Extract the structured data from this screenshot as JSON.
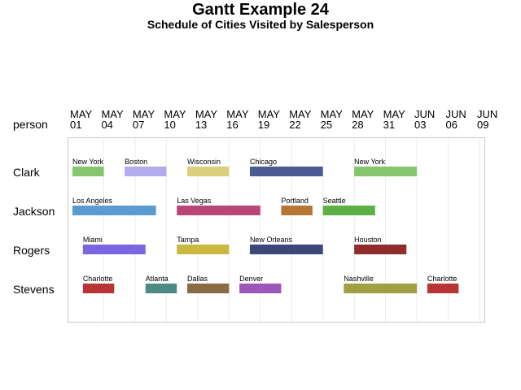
{
  "chart_data": {
    "type": "gantt",
    "title": "Gantt Example 24",
    "subtitle": "Schedule of Cities Visited by Salesperson",
    "row_header": "person",
    "x_start": "May 1",
    "x_end": "Jun 10",
    "ticks": [
      {
        "month": "MAY",
        "day": "01",
        "at": "May 1"
      },
      {
        "month": "MAY",
        "day": "04",
        "at": "May 4"
      },
      {
        "month": "MAY",
        "day": "07",
        "at": "May 7"
      },
      {
        "month": "MAY",
        "day": "10",
        "at": "May 10"
      },
      {
        "month": "MAY",
        "day": "13",
        "at": "May 13"
      },
      {
        "month": "MAY",
        "day": "16",
        "at": "May 16"
      },
      {
        "month": "MAY",
        "day": "19",
        "at": "May 19"
      },
      {
        "month": "MAY",
        "day": "22",
        "at": "May 22"
      },
      {
        "month": "MAY",
        "day": "25",
        "at": "May 25"
      },
      {
        "month": "MAY",
        "day": "28",
        "at": "May 28"
      },
      {
        "month": "MAY",
        "day": "31",
        "at": "May 31"
      },
      {
        "month": "JUN",
        "day": "03",
        "at": "Jun 3"
      },
      {
        "month": "JUN",
        "day": "06",
        "at": "Jun 6"
      },
      {
        "month": "JUN",
        "day": "09",
        "at": "Jun 9"
      }
    ],
    "persons": [
      {
        "name": "Clark",
        "tasks": [
          {
            "city": "New York",
            "start": "May 1",
            "end": "May 4",
            "color": "#84c56e"
          },
          {
            "city": "Boston",
            "start": "May 6",
            "end": "May 10",
            "color": "#b4aaee"
          },
          {
            "city": "Wisconsin",
            "start": "May 12",
            "end": "May 16",
            "color": "#dccf7c"
          },
          {
            "city": "Chicago",
            "start": "May 18",
            "end": "May 25",
            "color": "#4b5b96"
          },
          {
            "city": "New York",
            "start": "May 28",
            "end": "Jun 3",
            "color": "#84c56e"
          }
        ]
      },
      {
        "name": "Jackson",
        "tasks": [
          {
            "city": "Los Angeles",
            "start": "May 1",
            "end": "May 9",
            "color": "#5b9bd2"
          },
          {
            "city": "Las Vegas",
            "start": "May 11",
            "end": "May 19",
            "color": "#b94674"
          },
          {
            "city": "Portland",
            "start": "May 21",
            "end": "May 24",
            "color": "#b57731"
          },
          {
            "city": "Seattle",
            "start": "May 25",
            "end": "May 30",
            "color": "#5cb045"
          }
        ]
      },
      {
        "name": "Rogers",
        "tasks": [
          {
            "city": "Miami",
            "start": "May 2",
            "end": "May 8",
            "color": "#7a66de"
          },
          {
            "city": "Tampa",
            "start": "May 11",
            "end": "May 16",
            "color": "#cbb83e"
          },
          {
            "city": "New Orleans",
            "start": "May 18",
            "end": "May 25",
            "color": "#3d4779"
          },
          {
            "city": "Houston",
            "start": "May 28",
            "end": "Jun 2",
            "color": "#912c2c"
          }
        ]
      },
      {
        "name": "Stevens",
        "tasks": [
          {
            "city": "Charlotte",
            "start": "May 2",
            "end": "May 5",
            "color": "#b93535"
          },
          {
            "city": "Atlanta",
            "start": "May 8",
            "end": "May 11",
            "color": "#4e8a84"
          },
          {
            "city": "Dallas",
            "start": "May 12",
            "end": "May 16",
            "color": "#8a6b44"
          },
          {
            "city": "Denver",
            "start": "May 17",
            "end": "May 21",
            "color": "#9c57b8"
          },
          {
            "city": "Nashville",
            "start": "May 27",
            "end": "Jun 3",
            "color": "#9fa043"
          },
          {
            "city": "Charlotte",
            "start": "Jun 4",
            "end": "Jun 7",
            "color": "#b93535"
          }
        ]
      }
    ]
  }
}
